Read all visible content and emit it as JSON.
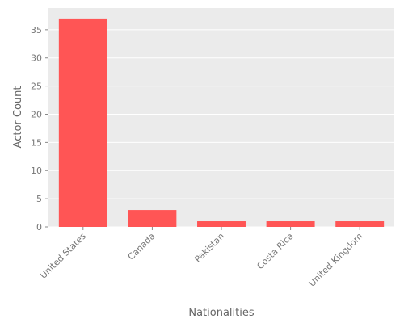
{
  "chart_data": {
    "type": "bar",
    "categories": [
      "United States",
      "Canada",
      "Pakistan",
      "Costa Rica",
      "United Kingdom"
    ],
    "values": [
      37,
      3,
      1,
      1,
      1
    ],
    "title": "",
    "xlabel": "Nationalities",
    "ylabel": "Actor Count",
    "ylim": [
      0,
      38.85
    ],
    "yticks": [
      0,
      5,
      10,
      15,
      20,
      25,
      30,
      35
    ],
    "grid": true,
    "bar_color": "#ff5555",
    "background_color": "#ebebeb",
    "grid_color": "#ffffff"
  }
}
